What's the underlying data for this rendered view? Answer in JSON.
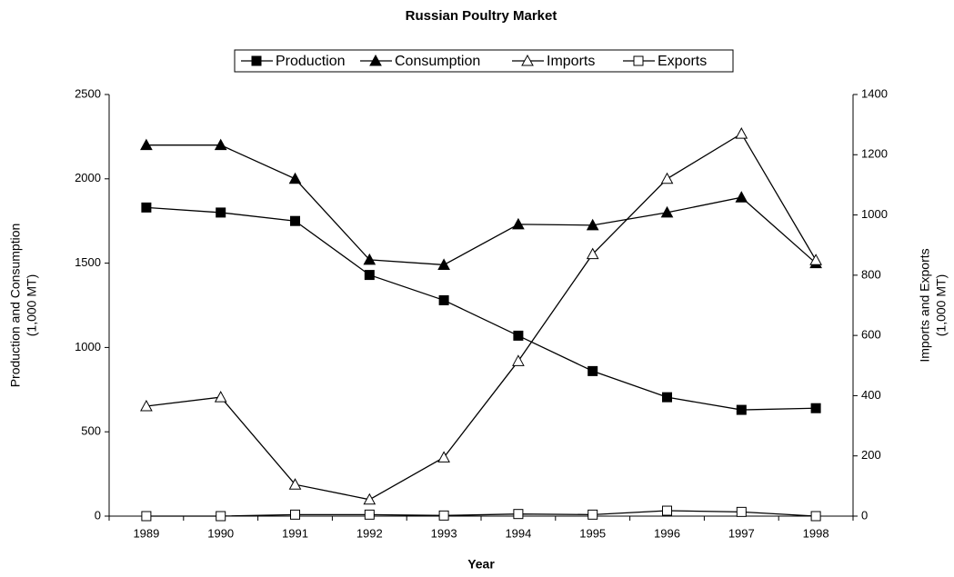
{
  "chart_data": {
    "type": "line",
    "title": "Russian Poultry Market",
    "x_label": "Year",
    "y_label": [
      "Production and Consumption",
      "(1,000 MT)"
    ],
    "y2_label": [
      "Imports and Exports",
      "(1,000 MT)"
    ],
    "categories": [
      "1989",
      "1990",
      "1991",
      "1992",
      "1993",
      "1994",
      "1995",
      "1996",
      "1997",
      "1998"
    ],
    "series": [
      {
        "name": "Production",
        "color": "#000000",
        "marker": "square",
        "filled": true,
        "values": [
          1830,
          1800,
          1750,
          1430,
          1280,
          1070,
          860,
          705,
          630,
          640
        ]
      },
      {
        "name": "Consumption",
        "color": "#000000",
        "marker": "triangle",
        "filled": true,
        "values": [
          2200,
          2200,
          2000,
          1520,
          1490,
          1730,
          1725,
          1800,
          1890,
          1500
        ]
      },
      {
        "name": "Imports",
        "color": "#000000",
        "marker": "triangle",
        "filled": false,
        "axis": "y2",
        "values": [
          365,
          395,
          105,
          55,
          195,
          515,
          870,
          1120,
          1270,
          850
        ]
      },
      {
        "name": "Exports",
        "color": "#000000",
        "marker": "square",
        "filled": false,
        "axis": "y2",
        "values": [
          0,
          0,
          5,
          5,
          2,
          7,
          5,
          18,
          14,
          0
        ]
      }
    ],
    "ylim": [
      0,
      2500
    ],
    "yticks": [
      0,
      500,
      1000,
      1500,
      2000,
      2500
    ],
    "y2lim": [
      0,
      1400
    ],
    "y2ticks": [
      0,
      200,
      400,
      600,
      800,
      1000,
      1200,
      1400
    ],
    "legend": "top",
    "grid": false
  }
}
